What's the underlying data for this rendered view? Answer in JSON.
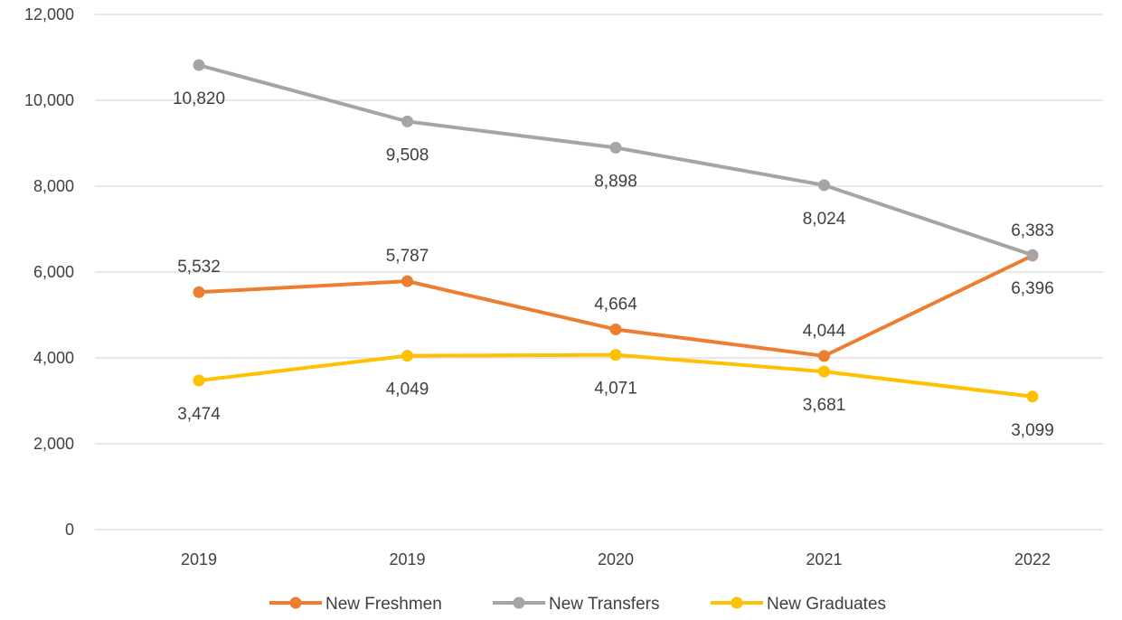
{
  "chart_data": {
    "type": "line",
    "title": "",
    "xlabel": "",
    "ylabel": "",
    "categories": [
      "2019",
      "2019",
      "2020",
      "2021",
      "2022"
    ],
    "y_ticks": [
      "0",
      "2,000",
      "4,000",
      "6,000",
      "8,000",
      "10,000",
      "12,000"
    ],
    "ylim": [
      0,
      12000
    ],
    "grid": true,
    "legend_position": "bottom",
    "series": [
      {
        "name": "New Freshmen",
        "color": "#ED7D31",
        "values": [
          5532,
          5787,
          4664,
          4044,
          6383
        ],
        "labels": [
          "5,532",
          "5,787",
          "4,664",
          "4,044",
          "6,383"
        ],
        "label_positions": [
          "above",
          "above",
          "above",
          "above",
          "above"
        ]
      },
      {
        "name": "New Transfers",
        "color": "#A5A5A5",
        "values": [
          10820,
          9508,
          8898,
          8024,
          6396
        ],
        "labels": [
          "10,820",
          "9,508",
          "8,898",
          "8,024",
          "6,396"
        ],
        "label_positions": [
          "below",
          "below",
          "below",
          "below",
          "below"
        ]
      },
      {
        "name": "New Graduates",
        "color": "#FFC000",
        "values": [
          3474,
          4049,
          4071,
          3681,
          3099
        ],
        "labels": [
          "3,474",
          "4,049",
          "4,071",
          "3,681",
          "3,099"
        ],
        "label_positions": [
          "below",
          "below",
          "below",
          "below",
          "below"
        ]
      }
    ]
  }
}
